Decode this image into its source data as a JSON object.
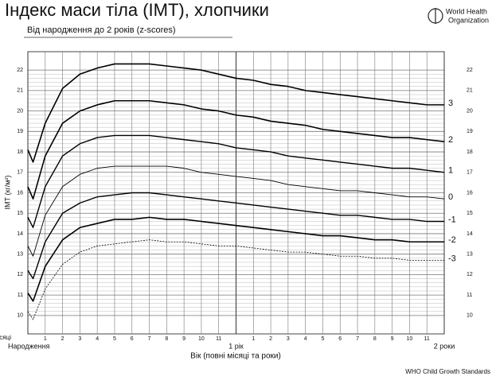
{
  "header": {
    "logo_lines": [
      "World Health",
      "Organization"
    ]
  },
  "footer": "WHO Child Growth Standards",
  "chart_data": {
    "type": "line",
    "title": "Індекс маси тіла (ІМТ), хлопчики",
    "subtitle": "Від народження до 2 років (z-scores)",
    "xlabel": "Вік (повні місяці та роки)",
    "ylabel": "ІМТ (кг/м²)",
    "x_unit_label": "Місяці",
    "x": [
      0,
      0.3,
      1,
      2,
      3,
      4,
      5,
      6,
      7,
      8,
      9,
      10,
      11,
      12,
      13,
      14,
      15,
      16,
      17,
      18,
      19,
      20,
      21,
      22,
      23,
      24
    ],
    "series": [
      {
        "name": "3",
        "color": "#000000",
        "line_width": 1.6,
        "dashed": false,
        "values": [
          18.1,
          17.5,
          19.4,
          21.1,
          21.8,
          22.1,
          22.3,
          22.3,
          22.3,
          22.2,
          22.1,
          22.0,
          21.8,
          21.6,
          21.5,
          21.3,
          21.2,
          21.0,
          20.9,
          20.8,
          20.7,
          20.6,
          20.5,
          20.4,
          20.3,
          20.3
        ]
      },
      {
        "name": "2",
        "color": "#000000",
        "line_width": 1.6,
        "dashed": false,
        "values": [
          16.3,
          15.7,
          17.8,
          19.4,
          20.0,
          20.3,
          20.5,
          20.5,
          20.5,
          20.4,
          20.3,
          20.1,
          20.0,
          19.8,
          19.7,
          19.5,
          19.4,
          19.3,
          19.1,
          19.0,
          18.9,
          18.8,
          18.7,
          18.7,
          18.6,
          18.5
        ]
      },
      {
        "name": "1",
        "color": "#000000",
        "line_width": 1.4,
        "dashed": false,
        "values": [
          14.8,
          14.3,
          16.3,
          17.8,
          18.4,
          18.7,
          18.8,
          18.8,
          18.8,
          18.7,
          18.6,
          18.5,
          18.4,
          18.2,
          18.1,
          18.0,
          17.8,
          17.7,
          17.6,
          17.5,
          17.4,
          17.3,
          17.2,
          17.2,
          17.1,
          17.0
        ]
      },
      {
        "name": "0",
        "color": "#000000",
        "line_width": 0.9,
        "dashed": false,
        "values": [
          13.4,
          12.9,
          14.9,
          16.3,
          16.9,
          17.2,
          17.3,
          17.3,
          17.3,
          17.3,
          17.2,
          17.0,
          16.9,
          16.8,
          16.7,
          16.6,
          16.4,
          16.3,
          16.2,
          16.1,
          16.1,
          16.0,
          15.9,
          15.8,
          15.8,
          15.7
        ]
      },
      {
        "name": "-1",
        "color": "#000000",
        "line_width": 1.4,
        "dashed": false,
        "values": [
          12.2,
          11.8,
          13.6,
          15.0,
          15.5,
          15.8,
          15.9,
          16.0,
          16.0,
          15.9,
          15.8,
          15.7,
          15.6,
          15.5,
          15.4,
          15.3,
          15.2,
          15.1,
          15.0,
          14.9,
          14.9,
          14.8,
          14.7,
          14.7,
          14.6,
          14.6
        ]
      },
      {
        "name": "-2",
        "color": "#000000",
        "line_width": 1.6,
        "dashed": false,
        "values": [
          11.1,
          10.7,
          12.4,
          13.7,
          14.3,
          14.5,
          14.7,
          14.7,
          14.8,
          14.7,
          14.7,
          14.6,
          14.5,
          14.4,
          14.3,
          14.2,
          14.1,
          14.0,
          13.9,
          13.9,
          13.8,
          13.7,
          13.7,
          13.6,
          13.6,
          13.6
        ]
      },
      {
        "name": "-3",
        "color": "#000000",
        "line_width": 0.8,
        "dashed": true,
        "values": [
          10.2,
          9.8,
          11.3,
          12.5,
          13.1,
          13.4,
          13.5,
          13.6,
          13.7,
          13.6,
          13.6,
          13.5,
          13.4,
          13.4,
          13.3,
          13.2,
          13.1,
          13.1,
          13.0,
          12.9,
          12.9,
          12.8,
          12.8,
          12.7,
          12.7,
          12.7
        ]
      }
    ],
    "xlim": [
      0,
      24
    ],
    "ylim": [
      9.1,
      22.9
    ],
    "yticks": [
      10,
      11,
      12,
      13,
      14,
      15,
      16,
      17,
      18,
      19,
      20,
      21,
      22
    ],
    "xticks": [
      1,
      2,
      3,
      4,
      5,
      6,
      7,
      8,
      9,
      10,
      11,
      {
        "value": 13,
        "label": "1"
      },
      {
        "value": 14,
        "label": "2"
      },
      {
        "value": 15,
        "label": "3"
      },
      {
        "value": 16,
        "label": "4"
      },
      {
        "value": 17,
        "label": "5"
      },
      {
        "value": 18,
        "label": "6"
      },
      {
        "value": 19,
        "label": "7"
      },
      {
        "value": 20,
        "label": "8"
      },
      {
        "value": 21,
        "label": "9"
      },
      {
        "value": 22,
        "label": "10"
      },
      {
        "value": 23,
        "label": "11"
      }
    ],
    "year_ticks": [
      {
        "value": 0,
        "label": "Народження"
      },
      {
        "value": 12,
        "label": "1 рік"
      },
      {
        "value": 24,
        "label": "2 роки"
      }
    ],
    "grid": true
  }
}
